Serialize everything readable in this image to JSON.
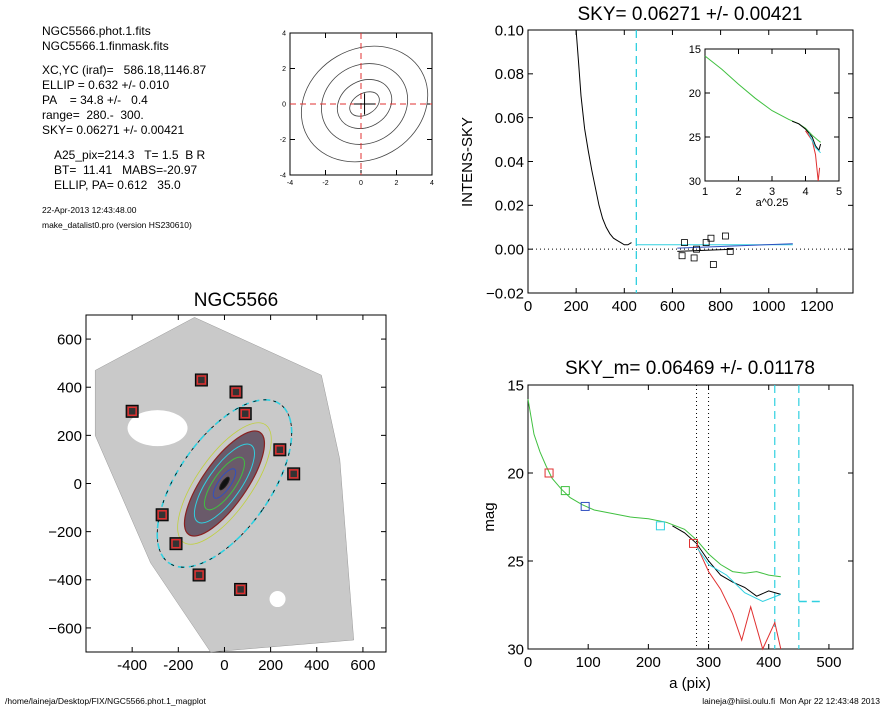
{
  "header_info": {
    "files": [
      "NGC5566.phot.1.fits",
      "NGC5566.1.finmask.fits"
    ],
    "params": [
      "XC,YC (iraf)=   586.18,1146.87",
      "ELLIP = 0.632 +/- 0.010",
      "PA    = 34.8 +/-   0.4",
      "range=  280.-  300.",
      "SKY= 0.06271 +/- 0.00421"
    ],
    "phot": [
      "A25_pix=214.3   T= 1.5  B R",
      "BT=  11.41   MABS=-20.97",
      "ELLIP, PA= 0.612   35.0"
    ],
    "date": "22-Apr-2013 12:43:48.00",
    "program": "make_datalist0.pro (version HS230610)"
  },
  "footer": {
    "left": "/home/laineja/Desktop/FIX/NGC5566.phot.1_magplot",
    "right": "laineja@hiisi.oulu.fi  Mon Apr 22 12:43:48 2013"
  },
  "colors": {
    "red": "#e03030",
    "cyan": "#30d0e0",
    "green": "#40c040",
    "blue": "#3050c0",
    "grey": "#777777"
  },
  "chart_data": [
    {
      "id": "contour",
      "type": "contour",
      "title": "",
      "xlim": [
        -4,
        4
      ],
      "ylim": [
        -4,
        4
      ],
      "xticks": [
        -4,
        -2,
        0,
        2,
        4
      ],
      "yticks": [
        -4,
        -2,
        0,
        2,
        4
      ]
    },
    {
      "id": "sky",
      "type": "line",
      "title": "SKY= 0.06271 +/- 0.00421",
      "xlabel": "",
      "ylabel": "INTENS-SKY",
      "xlim": [
        0,
        1350
      ],
      "ylim": [
        -0.02,
        0.1
      ],
      "xticks": [
        0,
        200,
        400,
        600,
        800,
        1000,
        1200
      ],
      "yticks": [
        -0.02,
        0.0,
        0.02,
        0.04,
        0.06,
        0.08,
        0.1
      ],
      "ytick_labels": [
        "−0.02",
        "0.00",
        "0.02",
        "0.04",
        "0.06",
        "0.08",
        "0.10"
      ],
      "profile": {
        "x": [
          200,
          210,
          220,
          235,
          250,
          265,
          280,
          295,
          310,
          325,
          340,
          355,
          370,
          385,
          400,
          415,
          430
        ],
        "y": [
          0.1,
          0.085,
          0.07,
          0.055,
          0.045,
          0.036,
          0.028,
          0.02,
          0.014,
          0.01,
          0.007,
          0.005,
          0.004,
          0.003,
          0.002,
          0.002,
          0.003
        ]
      },
      "sky_segments": [
        {
          "color": "cyan",
          "x": [
            450,
            1100
          ],
          "y": [
            0.002,
            0.002
          ]
        },
        {
          "color": "blue",
          "x": [
            620,
            1100
          ],
          "y": [
            0.0005,
            0.0025
          ]
        },
        {
          "color": "black",
          "x": [
            620,
            850
          ],
          "y": [
            -0.001,
            0.0
          ]
        }
      ],
      "sky_boxes": [
        {
          "x": 640,
          "y": -0.003
        },
        {
          "x": 650,
          "y": 0.003
        },
        {
          "x": 700,
          "y": 0.0
        },
        {
          "x": 740,
          "y": 0.003
        },
        {
          "x": 760,
          "y": 0.005
        },
        {
          "x": 770,
          "y": -0.007
        },
        {
          "x": 820,
          "y": 0.006
        },
        {
          "x": 840,
          "y": -0.001
        },
        {
          "x": 690,
          "y": -0.004
        }
      ],
      "vline": 450,
      "inset": {
        "xlabel": "a^0.25",
        "xlim": [
          1,
          5
        ],
        "ylim": [
          15,
          30
        ],
        "xticks": [
          1,
          2,
          3,
          4,
          5
        ],
        "yticks": [
          15,
          20,
          25,
          30
        ],
        "series": [
          {
            "color": "green",
            "x": [
              1.0,
              1.5,
              2.0,
              2.5,
              3.0,
              3.5,
              3.8,
              4.0,
              4.2,
              4.35,
              4.45
            ],
            "y": [
              15.8,
              17.3,
              19.0,
              20.6,
              22.0,
              23.0,
              23.5,
              24.0,
              24.8,
              25.3,
              25.6
            ]
          },
          {
            "color": "black",
            "x": [
              3.6,
              3.8,
              4.0,
              4.2,
              4.3,
              4.4,
              4.45
            ],
            "y": [
              23.2,
              23.5,
              24.1,
              25.0,
              26.0,
              26.5,
              25.8
            ]
          },
          {
            "color": "red",
            "x": [
              4.0,
              4.2,
              4.3,
              4.38,
              4.42
            ],
            "y": [
              24.3,
              25.4,
              27.0,
              30.0,
              28.5
            ]
          },
          {
            "color": "cyan",
            "x": [
              4.1,
              4.3,
              4.45
            ],
            "y": [
              24.6,
              26.2,
              26.8
            ]
          }
        ]
      }
    },
    {
      "id": "image",
      "type": "image",
      "title": "NGC5566",
      "xlim": [
        -600,
        700
      ],
      "ylim": [
        -700,
        700
      ],
      "xticks": [
        -400,
        -200,
        0,
        200,
        400,
        600
      ],
      "yticks": [
        -600,
        -400,
        -200,
        0,
        200,
        400,
        600
      ],
      "ellipse": {
        "pa_deg": 35,
        "major": 270,
        "minor": 95
      },
      "outer_ellipse": {
        "major": 420,
        "minor": 200
      },
      "mask_boxes": [
        {
          "x": -400,
          "y": 300
        },
        {
          "x": -100,
          "y": 430
        },
        {
          "x": 50,
          "y": 380
        },
        {
          "x": 90,
          "y": 290
        },
        {
          "x": 240,
          "y": 140
        },
        {
          "x": 300,
          "y": 40
        },
        {
          "x": -270,
          "y": -130
        },
        {
          "x": -210,
          "y": -250
        },
        {
          "x": -110,
          "y": -380
        },
        {
          "x": 70,
          "y": -440
        }
      ]
    },
    {
      "id": "mag",
      "type": "line",
      "title": "SKY_m=  0.06469 +/- 0.01178",
      "xlabel": "a (pix)",
      "ylabel": "mag",
      "xlim": [
        0,
        540
      ],
      "ylim": [
        15,
        30
      ],
      "xticks": [
        0,
        100,
        200,
        300,
        400,
        500
      ],
      "yticks": [
        15,
        20,
        25,
        30
      ],
      "vlines_dotted": [
        280,
        300
      ],
      "vlines_dashed": [
        410,
        450
      ],
      "series": [
        {
          "color": "green",
          "x": [
            0,
            10,
            20,
            30,
            40,
            55,
            70,
            90,
            110,
            140,
            170,
            200,
            230,
            260,
            280,
            300,
            320,
            340,
            360,
            380,
            400,
            420
          ],
          "y": [
            15.8,
            17.8,
            18.8,
            19.6,
            20.3,
            20.9,
            21.4,
            21.8,
            22.1,
            22.3,
            22.5,
            22.6,
            22.8,
            23.2,
            23.8,
            24.6,
            25.2,
            25.6,
            25.7,
            25.6,
            25.8,
            25.9
          ]
        },
        {
          "color": "black",
          "x": [
            240,
            260,
            280,
            300,
            320,
            340,
            360,
            380,
            400,
            420
          ],
          "y": [
            23.0,
            23.4,
            24.0,
            25.0,
            25.8,
            26.2,
            26.5,
            27.0,
            26.7,
            26.9
          ]
        },
        {
          "color": "red",
          "x": [
            280,
            300,
            320,
            340,
            355,
            370,
            390,
            410,
            420
          ],
          "y": [
            24.1,
            25.6,
            26.6,
            28.0,
            29.5,
            27.6,
            30.0,
            28.5,
            30.0
          ]
        },
        {
          "color": "cyan",
          "x": [
            280,
            300,
            330,
            360,
            390,
            420
          ],
          "y": [
            24.2,
            25.2,
            25.8,
            26.8,
            27.3,
            26.9
          ]
        }
      ],
      "boxes": [
        {
          "color": "red",
          "x": 35,
          "y": 20.0
        },
        {
          "color": "green",
          "x": 62,
          "y": 21.0
        },
        {
          "color": "blue",
          "x": 95,
          "y": 21.9
        },
        {
          "color": "cyan",
          "x": 220,
          "y": 23.0
        },
        {
          "color": "red",
          "x": 275,
          "y": 24.0
        }
      ],
      "sky_level": {
        "x": [
          450,
          490
        ],
        "y": [
          27.3,
          27.3
        ]
      }
    }
  ]
}
